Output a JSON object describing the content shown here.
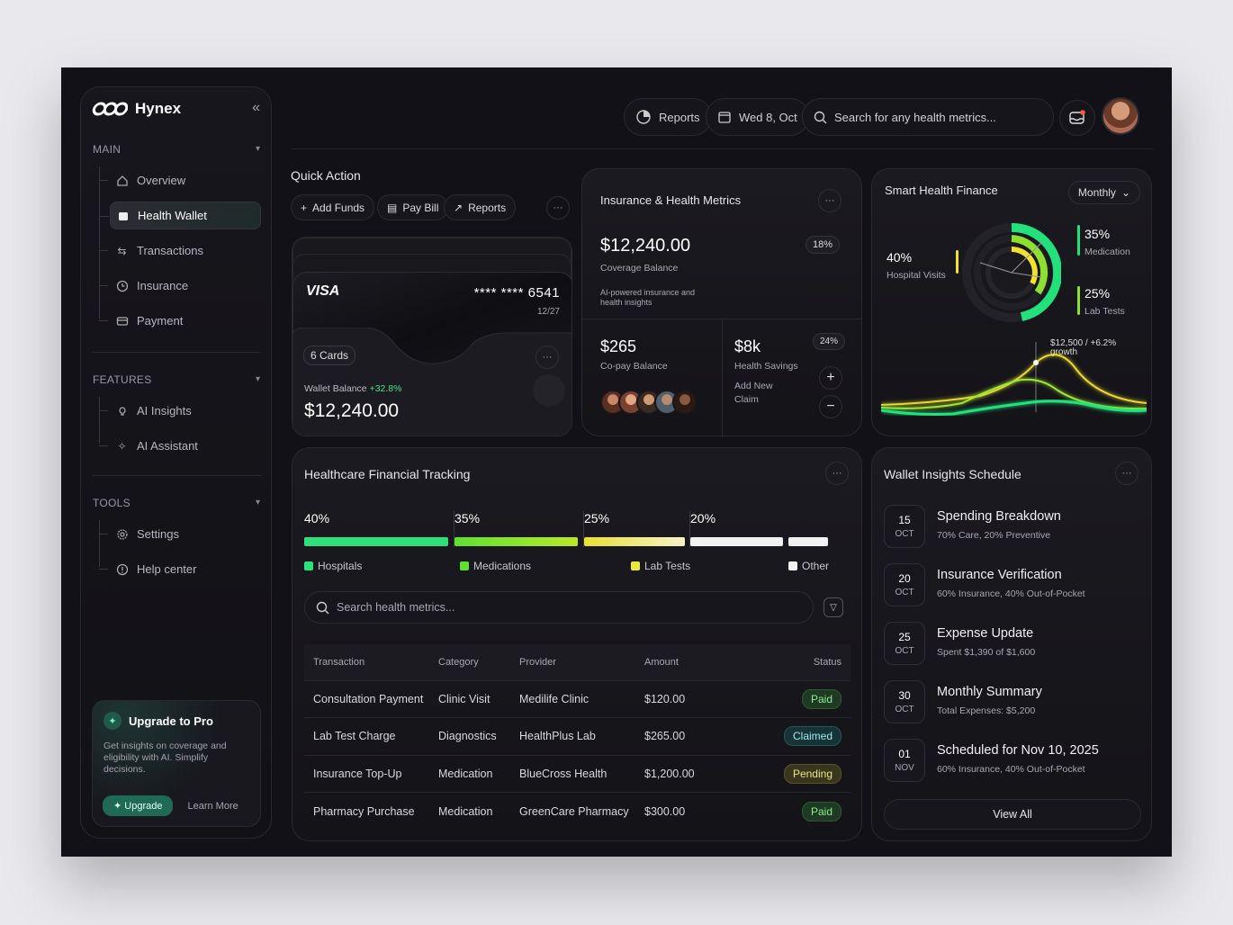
{
  "brand": {
    "name": "Hynex"
  },
  "sidebar": {
    "main_title": "MAIN",
    "main_items": [
      {
        "label": "Overview",
        "icon": "home-icon"
      },
      {
        "label": "Health Wallet",
        "icon": "wallet-icon",
        "active": true
      },
      {
        "label": "Transactions",
        "icon": "arrows-icon"
      },
      {
        "label": "Insurance",
        "icon": "clock-icon"
      },
      {
        "label": "Payment",
        "icon": "card-icon"
      }
    ],
    "features_title": "FEATURES",
    "features_items": [
      {
        "label": "AI Insights",
        "icon": "bulb-icon"
      },
      {
        "label": "AI Assistant",
        "icon": "sparkle-icon"
      }
    ],
    "tools_title": "TOOLS",
    "tools_items": [
      {
        "label": "Settings",
        "icon": "gear-icon"
      },
      {
        "label": "Help center",
        "icon": "info-icon"
      }
    ],
    "upgrade": {
      "title": "Upgrade to Pro",
      "desc": "Get insights on coverage and eligibility with AI. Simplify decisions.",
      "button": "Upgrade",
      "learn": "Learn More"
    }
  },
  "topbar": {
    "reports": "Reports",
    "date": "Wed 8, Oct",
    "search_placeholder": "Search for any health metrics..."
  },
  "quick_action": {
    "title": "Quick Action",
    "buttons": [
      "Add Funds",
      "Pay Bill",
      "Reports"
    ]
  },
  "wallet": {
    "brand": "VISA",
    "number": "**** **** 6541",
    "expiry": "12/27",
    "cards_count": "6 Cards",
    "balance_label": "Wallet Balance",
    "balance_change": "+32.8%",
    "balance_value": "$12,240.00"
  },
  "insurance": {
    "title": "Insurance & Health Metrics",
    "coverage_value": "$12,240.00",
    "coverage_label": "Coverage Balance",
    "coverage_pct": "18%",
    "ai_note": "AI-powered insurance and health insights",
    "copay_value": "$265",
    "copay_label": "Co-pay Balance",
    "savings_value": "$8k",
    "savings_label": "Health Savings",
    "savings_pct": "24%",
    "claim_label": "Add New Claim"
  },
  "finance": {
    "title": "Smart Health Finance",
    "period": "Monthly",
    "hospital_pct": "40%",
    "hospital_label": "Hospital Visits",
    "medication_pct": "35%",
    "medication_label": "Medication",
    "lab_pct": "25%",
    "lab_label": "Lab Tests",
    "growth_note": "$12,500 / +6.2% growth",
    "colors": {
      "green": "#22e07a",
      "lime": "#b8f025",
      "yellow": "#f0e030"
    }
  },
  "tracking": {
    "title": "Healthcare Financial Tracking",
    "segments": [
      {
        "pct": "40%",
        "label": "Hospitals",
        "value": 40,
        "color": "#2fe07a"
      },
      {
        "pct": "35%",
        "label": "Medications",
        "value": 35,
        "color": "#7be025"
      },
      {
        "pct": "25%",
        "label": "Lab Tests",
        "value": 25,
        "color": "#e8e840"
      },
      {
        "pct": "20%",
        "label": "Other",
        "value": 20,
        "color": "#f2f2f2"
      }
    ],
    "search_placeholder": "Search health metrics...",
    "columns": [
      "Transaction",
      "Category",
      "Provider",
      "Amount",
      "Status"
    ],
    "rows": [
      {
        "transaction": "Consultation Payment",
        "category": "Clinic Visit",
        "provider": "Medilife Clinic",
        "amount": "$120.00",
        "status": "Paid"
      },
      {
        "transaction": "Lab Test Charge",
        "category": "Diagnostics",
        "provider": "HealthPlus Lab",
        "amount": "$265.00",
        "status": "Claimed"
      },
      {
        "transaction": "Insurance Top-Up",
        "category": "Medication",
        "provider": "BlueCross Health",
        "amount": "$1,200.00",
        "status": "Pending"
      },
      {
        "transaction": "Pharmacy Purchase",
        "category": "Medication",
        "provider": "GreenCare Pharmacy",
        "amount": "$300.00",
        "status": "Paid"
      }
    ]
  },
  "schedule": {
    "title": "Wallet Insights Schedule",
    "items": [
      {
        "day": "15",
        "month": "OCT",
        "title": "Spending Breakdown",
        "sub": "70% Care, 20% Preventive"
      },
      {
        "day": "20",
        "month": "OCT",
        "title": "Insurance Verification",
        "sub": "60% Insurance, 40% Out-of-Pocket"
      },
      {
        "day": "25",
        "month": "OCT",
        "title": "Expense Update",
        "sub": "Spent $1,390 of $1,600"
      },
      {
        "day": "30",
        "month": "OCT",
        "title": "Monthly Summary",
        "sub": "Total Expenses: $5,200"
      },
      {
        "day": "01",
        "month": "NOV",
        "title": "Scheduled for Nov 10, 2025",
        "sub": "60% Insurance, 40% Out-of-Pocket"
      }
    ],
    "view_all": "View All"
  }
}
